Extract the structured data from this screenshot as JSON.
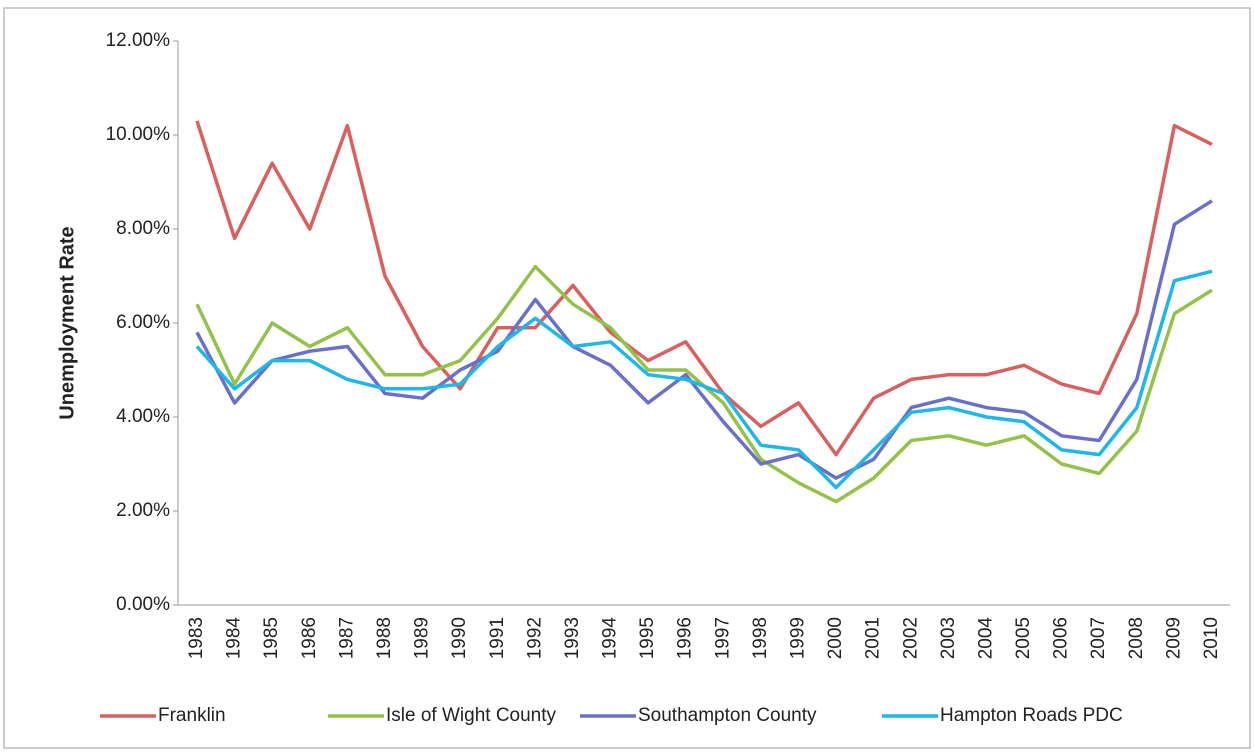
{
  "chart_data": {
    "type": "line",
    "y_label": "Unemployment Rate",
    "categories": [
      "1983",
      "1984",
      "1985",
      "1986",
      "1987",
      "1988",
      "1989",
      "1990",
      "1991",
      "1992",
      "1993",
      "1994",
      "1995",
      "1996",
      "1997",
      "1998",
      "1999",
      "2000",
      "2001",
      "2002",
      "2003",
      "2004",
      "2005",
      "2006",
      "2007",
      "2008",
      "2009",
      "2010"
    ],
    "series": [
      {
        "name": "Franklin",
        "color": "#d9605e",
        "values": [
          10.3,
          7.8,
          9.4,
          8.0,
          10.2,
          7.0,
          5.5,
          4.6,
          5.9,
          5.9,
          6.8,
          5.8,
          5.2,
          5.6,
          4.5,
          3.8,
          4.3,
          3.2,
          4.4,
          4.8,
          4.9,
          4.9,
          5.1,
          4.7,
          4.5,
          6.2,
          10.2,
          9.8
        ]
      },
      {
        "name": "Isle of Wight County",
        "color": "#92c348",
        "values": [
          6.4,
          4.7,
          6.0,
          5.5,
          5.9,
          4.9,
          4.9,
          5.2,
          6.1,
          7.2,
          6.4,
          5.9,
          5.0,
          5.0,
          4.3,
          3.1,
          2.6,
          2.2,
          2.7,
          3.5,
          3.6,
          3.4,
          3.6,
          3.0,
          2.8,
          3.7,
          6.2,
          6.7
        ]
      },
      {
        "name": "Southampton County",
        "color": "#6a70c8",
        "values": [
          5.8,
          4.3,
          5.2,
          5.4,
          5.5,
          4.5,
          4.4,
          5.0,
          5.4,
          6.5,
          5.5,
          5.1,
          4.3,
          4.9,
          3.9,
          3.0,
          3.2,
          2.7,
          3.1,
          4.2,
          4.4,
          4.2,
          4.1,
          3.6,
          3.5,
          4.8,
          8.1,
          8.6
        ]
      },
      {
        "name": "Hampton Roads PDC",
        "color": "#1fb6e8",
        "values": [
          5.5,
          4.6,
          5.2,
          5.2,
          4.8,
          4.6,
          4.6,
          4.7,
          5.5,
          6.1,
          5.5,
          5.6,
          4.9,
          4.8,
          4.5,
          3.4,
          3.3,
          2.5,
          3.3,
          4.1,
          4.2,
          4.0,
          3.9,
          3.3,
          3.2,
          4.2,
          6.9,
          7.1
        ]
      }
    ],
    "ylim": [
      0,
      12
    ],
    "yticks": [
      {
        "value": 0,
        "label": "0.00%"
      },
      {
        "value": 2,
        "label": "2.00%"
      },
      {
        "value": 4,
        "label": "4.00%"
      },
      {
        "value": 6,
        "label": "6.00%"
      },
      {
        "value": 8,
        "label": "8.00%"
      },
      {
        "value": 10,
        "label": "10.00%"
      },
      {
        "value": 12,
        "label": "12.00%"
      }
    ],
    "legend": "bottom"
  }
}
